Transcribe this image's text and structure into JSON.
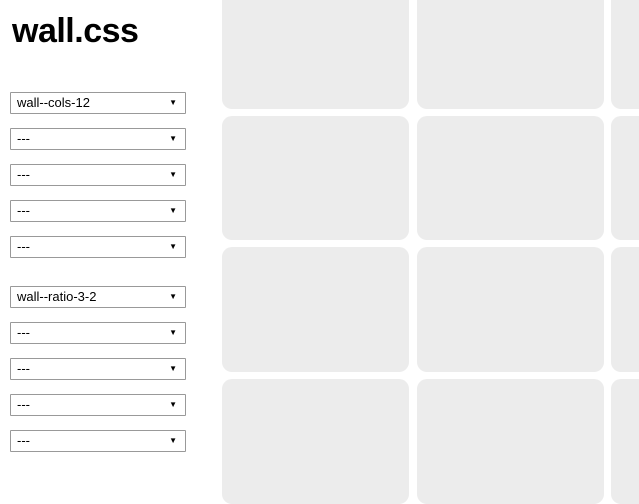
{
  "page": {
    "title": "wall.css"
  },
  "controls": {
    "dropdown_arrow": "▼",
    "group1": {
      "values": [
        "wall--cols-12",
        "---",
        "---",
        "---",
        "---"
      ]
    },
    "group2": {
      "values": [
        "wall--ratio-3-2",
        "---",
        "---",
        "---",
        "---"
      ]
    }
  },
  "wall": {
    "tile_count": 12,
    "visible_columns": 3,
    "visible_rows": 4,
    "tile_color": "#ececec"
  },
  "colors": {
    "background": "#ffffff",
    "select_border": "#999999",
    "text": "#000000"
  }
}
